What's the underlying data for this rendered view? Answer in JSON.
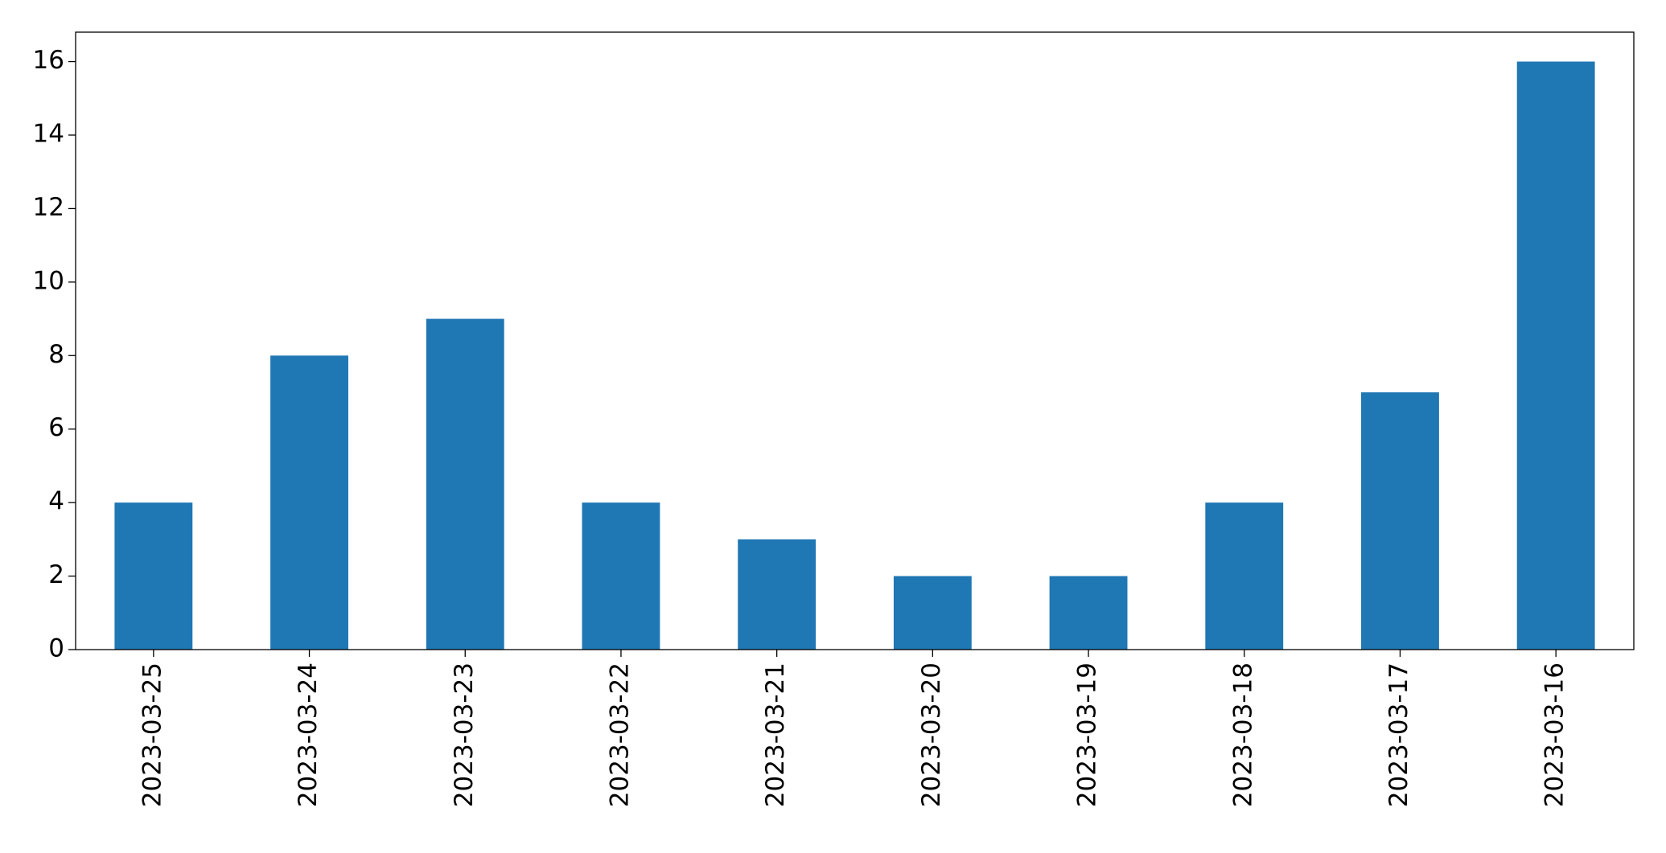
{
  "chart_data": {
    "type": "bar",
    "categories": [
      "2023-03-25",
      "2023-03-24",
      "2023-03-23",
      "2023-03-22",
      "2023-03-21",
      "2023-03-20",
      "2023-03-19",
      "2023-03-18",
      "2023-03-17",
      "2023-03-16"
    ],
    "values": [
      4,
      8,
      9,
      4,
      3,
      2,
      2,
      4,
      7,
      16
    ],
    "color": "#1f77b4",
    "ylim": [
      0,
      16.8
    ],
    "yticks": [
      0,
      2,
      4,
      6,
      8,
      10,
      12,
      14,
      16
    ],
    "grid": false
  }
}
